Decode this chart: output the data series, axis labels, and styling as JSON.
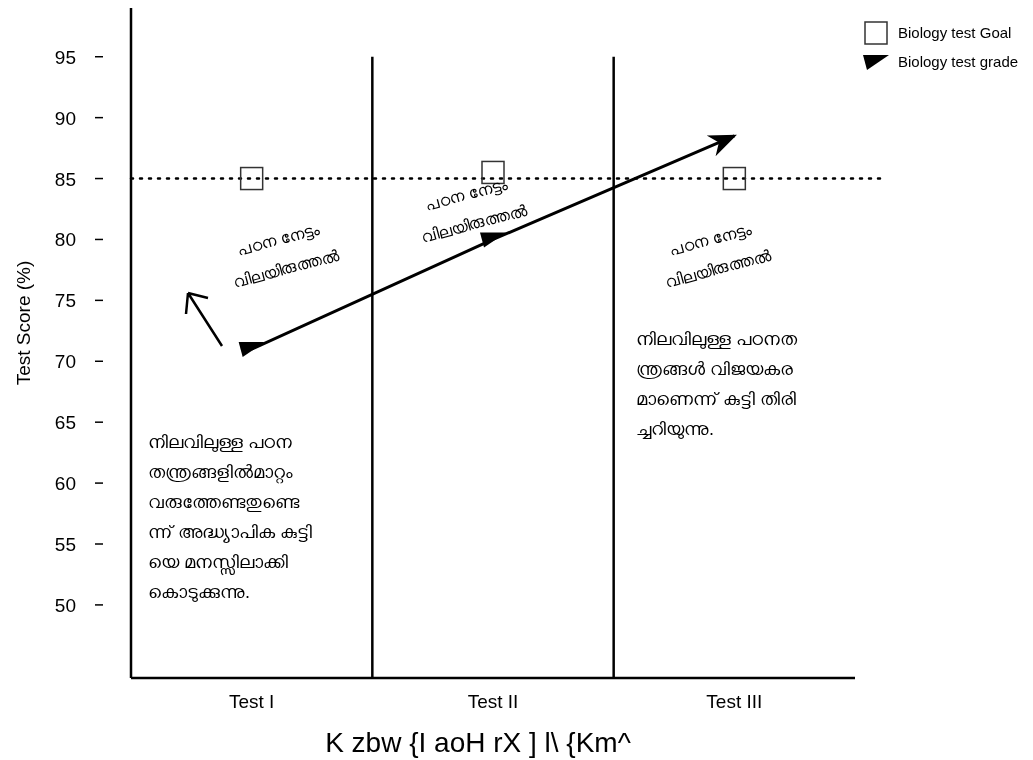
{
  "chart_data": {
    "type": "line",
    "ylabel": "Test Score (%)",
    "xlabel": "K zbw {I aoH rX ] l\\ {Km^",
    "categories": [
      "Test I",
      "Test II",
      "Test III"
    ],
    "ylim": [
      44,
      99
    ],
    "yticks": [
      50,
      55,
      60,
      65,
      70,
      75,
      80,
      85,
      90,
      95
    ],
    "grid": "x",
    "legend": "top right",
    "series": [
      {
        "name": "Biology test Goal",
        "type": "scatter",
        "marker": "square",
        "color": "#333333",
        "values": [
          85,
          85.5,
          85
        ]
      },
      {
        "name": "Biology test grade",
        "marker": "triangle",
        "line_style": "solid",
        "color": "#000000",
        "values": [
          71,
          80,
          88.5
        ]
      }
    ],
    "ref_lines": [
      {
        "axis": "y",
        "value": 85,
        "line_style": "dotted",
        "color": "#000000"
      }
    ],
    "annotations": [
      "പഠന നേട്ടം\nവിലയിരുത്തൽ",
      "പഠന നേട്ടം\nവിലയിരുത്തൽ",
      "പഠന നേട്ടം\nവിലയിരുത്തൽ",
      "നിലവിലുള്ള പഠന\nതന്ത്രങ്ങളിൽമാറ്റം\nവരുത്തേണ്ടതുണ്ടെ\nന്ന് അദ്ധ്യാപിക കുട്ടി\nയെ മനസ്സിലാക്കി\nകൊടുക്കുന്നു.",
      "നിലവിലുള്ള പഠനത\nന്ത്രങ്ങൾ വിജയകര\nമാണെന്ന് കുട്ടി തിരി\nച്ചറിയുന്നു."
    ]
  }
}
